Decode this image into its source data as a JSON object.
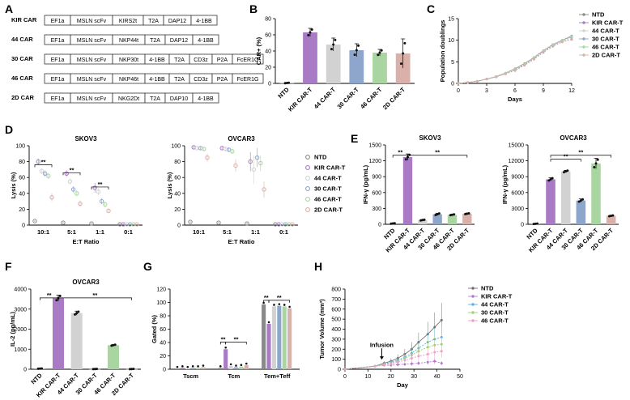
{
  "panels": {
    "A": {
      "label": "A",
      "constructs": [
        {
          "name": "KIR CAR",
          "parts": [
            "EF1a",
            "MSLN scFv",
            "KIRS2t",
            "T2A",
            "DAP12",
            "4-1BB"
          ]
        },
        {
          "name": "44 CAR",
          "parts": [
            "EF1a",
            "MSLN scFv",
            "NKP44t",
            "T2A",
            "DAP12",
            "4-1BB"
          ]
        },
        {
          "name": "30 CAR",
          "parts": [
            "EF1a",
            "MSLN scFv",
            "NKP30t",
            "4-1BB",
            "T2A",
            "CD3z",
            "P2A",
            "FcER1G"
          ]
        },
        {
          "name": "46 CAR",
          "parts": [
            "EF1a",
            "MSLN scFv",
            "NKP46t",
            "4-1BB",
            "T2A",
            "CD3z",
            "P2A",
            "FcER1G"
          ]
        },
        {
          "name": "2D CAR",
          "parts": [
            "EF1a",
            "MSLN scFv",
            "NKG2Dt",
            "T2A",
            "DAP10",
            "4-1BB"
          ]
        }
      ]
    },
    "B": {
      "label": "B"
    },
    "C": {
      "label": "C"
    },
    "D": {
      "label": "D"
    },
    "E": {
      "label": "E"
    },
    "F": {
      "label": "F"
    },
    "G": {
      "label": "G"
    },
    "H": {
      "label": "H"
    }
  },
  "colors": {
    "NTD": "#8a8a8a",
    "KIR": "#a97bc4",
    "44": "#d2d2d2",
    "30": "#8ea6cc",
    "46": "#a9d6a0",
    "2D": "#d9b1aa",
    "h_KIR": "#b57ad0",
    "h_44": "#5bb0e0",
    "h_30": "#a0d070",
    "h_46": "#f0a0c8"
  },
  "chart_data": [
    {
      "id": "B",
      "type": "bar",
      "title": "",
      "xlabel": "",
      "ylabel": "CAR+ (%)",
      "ylim": [
        0,
        80
      ],
      "yticks": [
        "0",
        "20",
        "40",
        "60",
        "80"
      ],
      "categories": [
        "NTD",
        "KIR CAR-T",
        "44 CAR-T",
        "30 CAR-T",
        "46 CAR-T",
        "2D CAR-T"
      ],
      "values": [
        0.5,
        63,
        48,
        41,
        38,
        37
      ],
      "errors": [
        0.3,
        5,
        8,
        8,
        4,
        18
      ]
    },
    {
      "id": "C",
      "type": "line",
      "title": "",
      "xlabel": "Days",
      "ylabel": "Population doublings",
      "xlim": [
        0,
        12
      ],
      "ylim": [
        0,
        15
      ],
      "xticks": [
        "0",
        "3",
        "6",
        "9",
        "12"
      ],
      "yticks": [
        "0",
        "5",
        "10",
        "15"
      ],
      "x": [
        0,
        1,
        2,
        3,
        4,
        5,
        6,
        7,
        8,
        9,
        10,
        11,
        12
      ],
      "series": [
        {
          "name": "NTD",
          "values": [
            0,
            0.2,
            0.5,
            1.0,
            1.6,
            2.4,
            3.4,
            4.6,
            6.0,
            7.6,
            9.0,
            10.0,
            11.0
          ]
        },
        {
          "name": "KIR CAR-T",
          "values": [
            0,
            0.2,
            0.5,
            1.0,
            1.5,
            2.2,
            3.0,
            4.2,
            5.6,
            7.2,
            8.6,
            9.6,
            10.2
          ]
        },
        {
          "name": "44 CAR-T",
          "values": [
            0,
            0.2,
            0.5,
            1.0,
            1.6,
            2.3,
            3.2,
            4.4,
            5.8,
            7.4,
            8.8,
            9.8,
            10.6
          ]
        },
        {
          "name": "30 CAR-T",
          "values": [
            0,
            0.2,
            0.5,
            1.0,
            1.5,
            2.3,
            3.2,
            4.4,
            5.9,
            7.5,
            8.9,
            9.9,
            10.8
          ]
        },
        {
          "name": "46 CAR-T",
          "values": [
            0,
            0.2,
            0.5,
            1.0,
            1.6,
            2.4,
            3.3,
            4.5,
            6.0,
            7.6,
            9.0,
            10.0,
            10.9
          ]
        },
        {
          "name": "2D CAR-T",
          "values": [
            0,
            0.2,
            0.5,
            1.0,
            1.5,
            2.2,
            3.1,
            4.3,
            5.7,
            7.3,
            8.7,
            9.6,
            10.3
          ]
        }
      ]
    },
    {
      "id": "D1",
      "type": "scatter",
      "title": "SKOV3",
      "xlabel": "E:T Ratio",
      "ylabel": "Lysis (%)",
      "ylim": [
        0,
        100
      ],
      "yticks": [
        "0",
        "20",
        "40",
        "60",
        "80",
        "100"
      ],
      "categories": [
        "10:1",
        "5:1",
        "1:1",
        "0:1"
      ],
      "series": [
        {
          "name": "NTD",
          "values": [
            5,
            3,
            2,
            1
          ],
          "errors": [
            1,
            1,
            1,
            1
          ]
        },
        {
          "name": "KIR CAR-T",
          "values": [
            80,
            65,
            47,
            1
          ],
          "errors": [
            4,
            4,
            6,
            1
          ]
        },
        {
          "name": "44 CAR-T",
          "values": [
            68,
            55,
            42,
            1
          ],
          "errors": [
            4,
            4,
            5,
            1
          ]
        },
        {
          "name": "30 CAR-T",
          "values": [
            65,
            45,
            30,
            1
          ],
          "errors": [
            4,
            4,
            4,
            1
          ]
        },
        {
          "name": "46 CAR-T",
          "values": [
            62,
            40,
            26,
            1
          ],
          "errors": [
            4,
            4,
            4,
            1
          ]
        },
        {
          "name": "2D CAR-T",
          "values": [
            35,
            27,
            18,
            1
          ],
          "errors": [
            5,
            4,
            3,
            1
          ]
        }
      ]
    },
    {
      "id": "D2",
      "type": "scatter",
      "title": "OVCAR3",
      "xlabel": "E:T Ratio",
      "ylabel": "Lysis (%)",
      "ylim": [
        0,
        100
      ],
      "yticks": [
        "0",
        "20",
        "40",
        "60",
        "80",
        "100"
      ],
      "categories": [
        "10:1",
        "5:1",
        "1:1",
        "0:1"
      ],
      "series": [
        {
          "name": "NTD",
          "values": [
            4,
            3,
            2,
            1
          ],
          "errors": [
            1,
            1,
            1,
            1
          ]
        },
        {
          "name": "KIR CAR-T",
          "values": [
            98,
            97,
            80,
            1
          ],
          "errors": [
            2,
            2,
            12,
            1
          ]
        },
        {
          "name": "44 CAR-T",
          "values": [
            97,
            96,
            70,
            1
          ],
          "errors": [
            2,
            3,
            18,
            1
          ]
        },
        {
          "name": "30 CAR-T",
          "values": [
            97,
            95,
            85,
            1
          ],
          "errors": [
            2,
            3,
            12,
            1
          ]
        },
        {
          "name": "46 CAR-T",
          "values": [
            96,
            93,
            78,
            1
          ],
          "errors": [
            2,
            3,
            10,
            1
          ]
        },
        {
          "name": "2D CAR-T",
          "values": [
            85,
            75,
            45,
            1
          ],
          "errors": [
            5,
            8,
            10,
            1
          ]
        }
      ],
      "legend": [
        "NTD",
        "KIR CAR-T",
        "44 CAR-T",
        "30 CAR-T",
        "46 CAR-T",
        "2D CAR-T"
      ]
    },
    {
      "id": "E1",
      "type": "bar",
      "title": "SKOV3",
      "ylabel": "IFN-γ (pg/mL)",
      "ylim": [
        0,
        1500
      ],
      "yticks": [
        "0",
        "300",
        "600",
        "900",
        "1200",
        "1500"
      ],
      "categories": [
        "NTD",
        "KIR CAR-T",
        "44 CAR-T",
        "30 CAR-T",
        "46 CAR-T",
        "2D CAR-T"
      ],
      "values": [
        15,
        1270,
        80,
        190,
        180,
        200
      ],
      "errors": [
        5,
        60,
        10,
        20,
        10,
        10
      ],
      "sig": [
        {
          "from": 0,
          "to": 1,
          "label": "**"
        },
        {
          "from": 1,
          "to": 5,
          "label": "**"
        }
      ]
    },
    {
      "id": "E2",
      "type": "bar",
      "title": "OVCAR3",
      "ylabel": "IFN-γ (pg/mL)",
      "ylim": [
        0,
        15000
      ],
      "yticks": [
        "0",
        "3000",
        "6000",
        "9000",
        "12000",
        "15000"
      ],
      "categories": [
        "NTD",
        "KIR CAR-T",
        "44 CAR-T",
        "30 CAR-T",
        "46 CAR-T",
        "2D CAR-T"
      ],
      "values": [
        100,
        8500,
        10000,
        4500,
        11500,
        1600
      ],
      "errors": [
        50,
        300,
        200,
        300,
        1000,
        100
      ],
      "sig": [
        {
          "from": 1,
          "to": 3,
          "label": "**"
        },
        {
          "from": 1,
          "to": 5,
          "label": "**"
        }
      ]
    },
    {
      "id": "F",
      "type": "bar",
      "title": "OVCAR3",
      "ylabel": "IL-2 (pg/mL)",
      "ylim": [
        0,
        4000
      ],
      "yticks": [
        "0",
        "1000",
        "2000",
        "3000",
        "4000"
      ],
      "categories": [
        "NTD",
        "KIR CAR-T",
        "44 CAR-T",
        "30 CAR-T",
        "46 CAR-T",
        "2D CAR-T"
      ],
      "values": [
        30,
        3550,
        2800,
        10,
        1200,
        10
      ],
      "errors": [
        10,
        150,
        100,
        5,
        30,
        5
      ],
      "sig": [
        {
          "from": 0,
          "to": 1,
          "label": "**"
        },
        {
          "from": 1,
          "to": 5,
          "label": "**"
        }
      ]
    },
    {
      "id": "G",
      "type": "bar",
      "title": "",
      "ylabel": "Gated (%)",
      "ylim": [
        0,
        120
      ],
      "yticks": [
        "0",
        "20",
        "40",
        "60",
        "80",
        "100",
        "120"
      ],
      "categories": [
        "Tscm",
        "Tcm",
        "Tem+Teff"
      ],
      "series": [
        {
          "name": "NTD",
          "values": [
            1,
            2,
            97
          ]
        },
        {
          "name": "KIR CAR-T",
          "values": [
            2,
            30,
            68
          ]
        },
        {
          "name": "44 CAR-T",
          "values": [
            1,
            5,
            94
          ]
        },
        {
          "name": "30 CAR-T",
          "values": [
            2,
            3,
            95
          ]
        },
        {
          "name": "46 CAR-T",
          "values": [
            2,
            4,
            94
          ]
        },
        {
          "name": "2D CAR-T",
          "values": [
            3,
            6,
            91
          ]
        }
      ],
      "sig": [
        {
          "group": 1,
          "from": 0,
          "to": 1,
          "label": "**"
        },
        {
          "group": 1,
          "from": 1,
          "to": 5,
          "label": "**"
        },
        {
          "group": 2,
          "from": 0,
          "to": 1,
          "label": "**"
        },
        {
          "group": 2,
          "from": 1,
          "to": 5,
          "label": "**"
        }
      ]
    },
    {
      "id": "H",
      "type": "line",
      "title": "",
      "xlabel": "Day",
      "ylabel": "Tumor Volume (mm³)",
      "xlim": [
        0,
        50
      ],
      "ylim": [
        0,
        800
      ],
      "xticks": [
        "0",
        "10",
        "20",
        "30",
        "40",
        "50"
      ],
      "yticks": [
        "0",
        "100",
        "200",
        "300",
        "400",
        "500",
        "600",
        "700",
        "800"
      ],
      "annotation": "Infusion",
      "annotation_x": 16,
      "x": [
        0,
        13,
        17,
        20,
        23,
        26,
        29,
        32,
        36,
        39,
        42
      ],
      "series": [
        {
          "name": "NTD",
          "values": [
            0,
            30,
            60,
            80,
            110,
            150,
            200,
            270,
            350,
            420,
            490
          ]
        },
        {
          "name": "KIR CAR-T",
          "values": [
            0,
            30,
            40,
            40,
            45,
            50,
            55,
            60,
            70,
            80,
            60
          ]
        },
        {
          "name": "44 CAR-T",
          "values": [
            0,
            30,
            50,
            70,
            90,
            120,
            160,
            210,
            270,
            300,
            320
          ]
        },
        {
          "name": "30 CAR-T",
          "values": [
            0,
            30,
            50,
            60,
            80,
            110,
            140,
            180,
            220,
            240,
            250
          ]
        },
        {
          "name": "46 CAR-T",
          "values": [
            0,
            30,
            45,
            55,
            70,
            90,
            110,
            130,
            150,
            170,
            180
          ]
        }
      ]
    }
  ]
}
